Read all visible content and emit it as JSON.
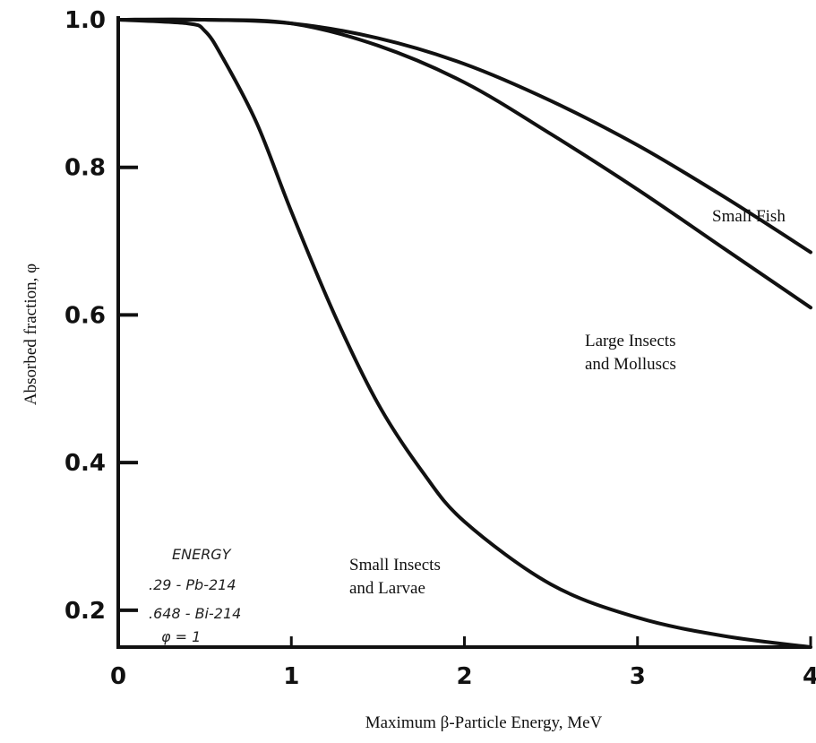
{
  "chart_data": {
    "type": "line",
    "xlabel": "Maximum β-Particle Energy, MeV",
    "ylabel": "Absorbed fraction, φ",
    "xlim": [
      0,
      4
    ],
    "ylim": [
      0.15,
      1.0
    ],
    "x_ticks": [
      0,
      1,
      2,
      3,
      4
    ],
    "x_tick_labels": [
      "0",
      "1",
      "2",
      "3",
      "4"
    ],
    "y_ticks": [
      0.2,
      0.4,
      0.6,
      0.8,
      1.0
    ],
    "y_tick_labels": [
      "0.2",
      "0.4",
      "0.6",
      "0.8",
      "1.0"
    ],
    "grid": false,
    "legend": "none",
    "series": [
      {
        "name": "Small Fish",
        "label_lines": [
          "Small Fish"
        ],
        "x": [
          0,
          0.5,
          1.0,
          1.5,
          2.0,
          2.5,
          3.0,
          3.5,
          4.0
        ],
        "y": [
          1.0,
          1.0,
          0.995,
          0.975,
          0.94,
          0.89,
          0.83,
          0.76,
          0.685
        ]
      },
      {
        "name": "Large Insects and Molluscs",
        "label_lines": [
          "Large Insects",
          "and Molluscs"
        ],
        "x": [
          0,
          0.5,
          1.0,
          1.5,
          2.0,
          2.5,
          3.0,
          3.5,
          4.0
        ],
        "y": [
          1.0,
          1.0,
          0.995,
          0.965,
          0.915,
          0.845,
          0.77,
          0.69,
          0.61
        ]
      },
      {
        "name": "Small Insects and Larvae",
        "label_lines": [
          "Small Insects",
          "and Larvae"
        ],
        "x": [
          0,
          0.4,
          0.5,
          0.6,
          0.8,
          1.0,
          1.25,
          1.5,
          1.75,
          2.0,
          2.5,
          3.0,
          3.5,
          4.0
        ],
        "y": [
          1.0,
          0.995,
          0.985,
          0.95,
          0.86,
          0.74,
          0.6,
          0.48,
          0.39,
          0.32,
          0.235,
          0.19,
          0.165,
          0.15
        ]
      }
    ],
    "annotations": [
      "ENERGY",
      ".29 - Pb-214",
      ".648 - Bi-214",
      "φ = 1"
    ]
  }
}
